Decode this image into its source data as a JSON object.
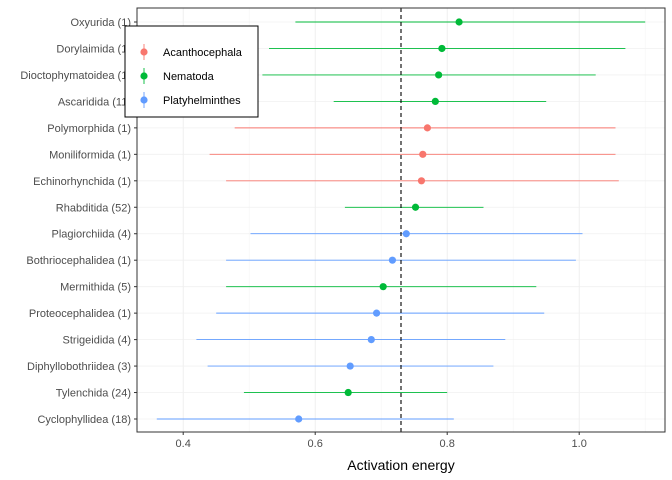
{
  "chart_data": {
    "type": "scatter",
    "title": "",
    "xlabel": "Activation energy",
    "ylabel": "",
    "xlim": [
      0.33,
      1.13
    ],
    "x_ticks": [
      0.4,
      0.6,
      0.8,
      1.0
    ],
    "x_tick_labels": [
      "0.4",
      "0.6",
      "0.8",
      "1.0"
    ],
    "grid": true,
    "legend_position": "top-left",
    "reference_line": {
      "x": 0.73,
      "style": "dashed"
    },
    "legend": [
      {
        "name": "Acanthocephala",
        "color": "#F8766D"
      },
      {
        "name": "Nematoda",
        "color": "#00BA38"
      },
      {
        "name": "Platyhelminthes",
        "color": "#619CFF"
      }
    ],
    "rows": [
      {
        "label": "Oxyurida (1)",
        "group": "Nematoda",
        "estimate": 0.818,
        "lower": 0.57,
        "upper": 1.1
      },
      {
        "label": "Dorylaimida (1)",
        "group": "Nematoda",
        "estimate": 0.792,
        "lower": 0.53,
        "upper": 1.07
      },
      {
        "label": "Dioctophymatoidea (1)",
        "group": "Nematoda",
        "estimate": 0.787,
        "lower": 0.52,
        "upper": 1.025
      },
      {
        "label": "Ascaridida (11)",
        "group": "Nematoda",
        "estimate": 0.782,
        "lower": 0.628,
        "upper": 0.95
      },
      {
        "label": "Polymorphida (1)",
        "group": "Acanthocephala",
        "estimate": 0.77,
        "lower": 0.478,
        "upper": 1.055
      },
      {
        "label": "Moniliformida (1)",
        "group": "Acanthocephala",
        "estimate": 0.763,
        "lower": 0.44,
        "upper": 1.055
      },
      {
        "label": "Echinorhynchida (1)",
        "group": "Acanthocephala",
        "estimate": 0.761,
        "lower": 0.465,
        "upper": 1.06
      },
      {
        "label": "Rhabditida (52)",
        "group": "Nematoda",
        "estimate": 0.752,
        "lower": 0.645,
        "upper": 0.855
      },
      {
        "label": "Plagiorchiida (4)",
        "group": "Platyhelminthes",
        "estimate": 0.738,
        "lower": 0.502,
        "upper": 1.005
      },
      {
        "label": "Bothriocephalidea (1)",
        "group": "Platyhelminthes",
        "estimate": 0.717,
        "lower": 0.465,
        "upper": 0.995
      },
      {
        "label": "Mermithida (5)",
        "group": "Nematoda",
        "estimate": 0.703,
        "lower": 0.465,
        "upper": 0.935
      },
      {
        "label": "Proteocephalidea (1)",
        "group": "Platyhelminthes",
        "estimate": 0.693,
        "lower": 0.45,
        "upper": 0.947
      },
      {
        "label": "Strigeidida (4)",
        "group": "Platyhelminthes",
        "estimate": 0.685,
        "lower": 0.42,
        "upper": 0.888
      },
      {
        "label": "Diphyllobothriidea (3)",
        "group": "Platyhelminthes",
        "estimate": 0.653,
        "lower": 0.437,
        "upper": 0.87
      },
      {
        "label": "Tylenchida (24)",
        "group": "Nematoda",
        "estimate": 0.65,
        "lower": 0.492,
        "upper": 0.8
      },
      {
        "label": "Cyclophyllidea (18)",
        "group": "Platyhelminthes",
        "estimate": 0.575,
        "lower": 0.36,
        "upper": 0.81
      }
    ]
  }
}
